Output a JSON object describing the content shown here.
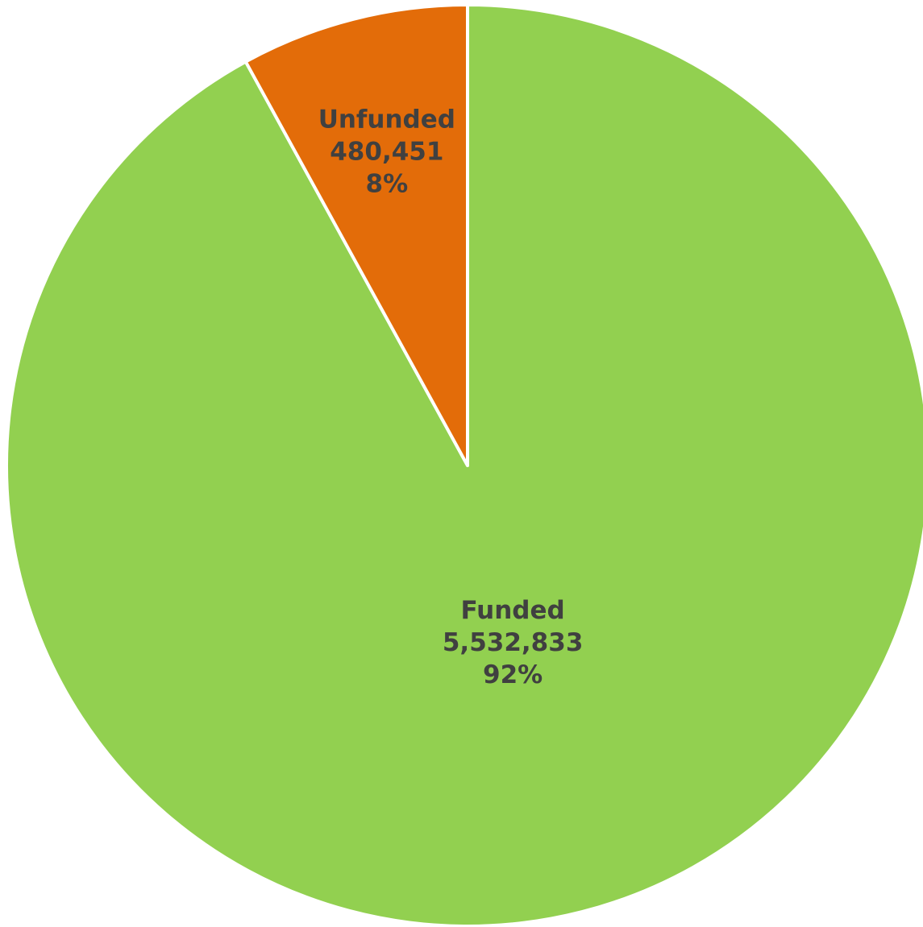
{
  "chart_data": {
    "type": "pie",
    "title": "",
    "start_angle_deg": 0,
    "direction": "clockwise",
    "slices": [
      {
        "name": "Funded",
        "value": 5532833,
        "value_label": "5,532,833",
        "percent_label": "92%",
        "color": "#92d050"
      },
      {
        "name": "Unfunded",
        "value": 480451,
        "value_label": "480,451",
        "percent_label": "8%",
        "color": "#e36c09"
      }
    ],
    "label_color": "#404040",
    "slice_border_color": "#ffffff",
    "legend": "none"
  }
}
